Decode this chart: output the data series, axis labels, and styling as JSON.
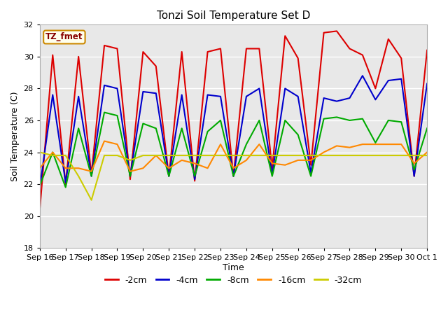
{
  "title": "Tonzi Soil Temperature Set D",
  "xlabel": "Time",
  "ylabel": "Soil Temperature (C)",
  "ylim": [
    18,
    32
  ],
  "yticks": [
    18,
    20,
    22,
    24,
    26,
    28,
    30,
    32
  ],
  "plot_bg_color": "#e8e8e8",
  "annotation_text": "TZ_fmet",
  "annotation_bg": "#ffffee",
  "annotation_border": "#cc8800",
  "annotation_text_color": "#880000",
  "series_order": [
    "-2cm",
    "-4cm",
    "-8cm",
    "-16cm",
    "-32cm"
  ],
  "series": {
    "-2cm": {
      "color": "#dd0000",
      "x": [
        0,
        0.5,
        1,
        1.5,
        2,
        2.5,
        3,
        3.5,
        4,
        4.5,
        5,
        5.5,
        6,
        6.5,
        7,
        7.5,
        8,
        8.5,
        9,
        9.5,
        10,
        10.5,
        11,
        11.5,
        12,
        12.5,
        13,
        13.5,
        14,
        14.5,
        15
      ],
      "y": [
        20.4,
        30.1,
        22.0,
        30.0,
        22.6,
        30.7,
        30.5,
        22.3,
        30.3,
        29.4,
        22.5,
        30.3,
        22.2,
        30.3,
        30.5,
        22.5,
        30.5,
        30.5,
        23.0,
        31.3,
        29.9,
        23.2,
        31.5,
        31.6,
        30.5,
        30.1,
        28.0,
        31.1,
        29.9,
        22.5,
        30.4
      ]
    },
    "-4cm": {
      "color": "#0000cc",
      "x": [
        0,
        0.5,
        1,
        1.5,
        2,
        2.5,
        3,
        3.5,
        4,
        4.5,
        5,
        5.5,
        6,
        6.5,
        7,
        7.5,
        8,
        8.5,
        9,
        9.5,
        10,
        10.5,
        11,
        11.5,
        12,
        12.5,
        13,
        13.5,
        14,
        14.5,
        15
      ],
      "y": [
        21.8,
        27.6,
        22.1,
        27.5,
        22.5,
        28.2,
        28.0,
        22.5,
        27.8,
        27.7,
        22.5,
        27.6,
        22.3,
        27.6,
        27.5,
        22.5,
        27.5,
        28.0,
        22.6,
        28.0,
        27.5,
        22.7,
        27.4,
        27.2,
        27.4,
        28.8,
        27.3,
        28.5,
        28.6,
        22.5,
        28.3
      ]
    },
    "-8cm": {
      "color": "#00aa00",
      "x": [
        0,
        0.5,
        1,
        1.5,
        2,
        2.5,
        3,
        3.5,
        4,
        4.5,
        5,
        5.5,
        6,
        6.5,
        7,
        7.5,
        8,
        8.5,
        9,
        9.5,
        10,
        10.5,
        11,
        11.5,
        12,
        12.5,
        13,
        13.5,
        14,
        14.5,
        15
      ],
      "y": [
        21.9,
        24.0,
        21.8,
        25.5,
        22.5,
        26.5,
        26.3,
        22.5,
        25.8,
        25.5,
        22.5,
        25.5,
        22.5,
        25.3,
        26.0,
        22.5,
        24.5,
        26.0,
        22.5,
        26.0,
        25.1,
        22.5,
        26.1,
        26.2,
        26.0,
        26.1,
        24.6,
        26.0,
        25.9,
        22.9,
        25.5
      ]
    },
    "-16cm": {
      "color": "#ff8800",
      "x": [
        0,
        0.5,
        1,
        1.5,
        2,
        2.5,
        3,
        3.5,
        4,
        4.5,
        5,
        5.5,
        6,
        6.5,
        7,
        7.5,
        8,
        8.5,
        9,
        9.5,
        10,
        10.5,
        11,
        11.5,
        12,
        12.5,
        13,
        13.5,
        14,
        14.5,
        15
      ],
      "y": [
        23.0,
        24.0,
        23.0,
        23.0,
        22.8,
        24.7,
        24.5,
        22.8,
        23.0,
        23.8,
        23.0,
        23.5,
        23.3,
        23.0,
        24.5,
        23.0,
        23.5,
        24.5,
        23.3,
        23.2,
        23.5,
        23.5,
        24.0,
        24.4,
        24.3,
        24.5,
        24.5,
        24.5,
        24.5,
        23.3,
        24.0
      ]
    },
    "-32cm": {
      "color": "#cccc00",
      "x": [
        0,
        0.5,
        1,
        1.5,
        2,
        2.5,
        3,
        3.5,
        4,
        4.5,
        5,
        5.5,
        6,
        6.5,
        7,
        7.5,
        8,
        8.5,
        9,
        9.5,
        10,
        10.5,
        11,
        11.5,
        12,
        12.5,
        13,
        13.5,
        14,
        14.5,
        15
      ],
      "y": [
        24.0,
        23.8,
        23.8,
        22.5,
        21.0,
        23.8,
        23.8,
        23.5,
        23.8,
        23.8,
        23.8,
        23.8,
        23.8,
        23.8,
        23.8,
        23.8,
        23.8,
        23.8,
        23.8,
        23.8,
        23.8,
        23.8,
        23.8,
        23.8,
        23.8,
        23.8,
        23.8,
        23.8,
        23.8,
        23.8,
        23.8
      ]
    }
  },
  "xtick_labels": [
    "Sep 16",
    "Sep 17",
    "Sep 18",
    "Sep 19",
    "Sep 20",
    "Sep 21",
    "Sep 22",
    "Sep 23",
    "Sep 24",
    "Sep 25",
    "Sep 26",
    "Sep 27",
    "Sep 28",
    "Sep 29",
    "Sep 30",
    "Oct 1"
  ],
  "xtick_positions": [
    0,
    1,
    2,
    3,
    4,
    5,
    6,
    7,
    8,
    9,
    10,
    11,
    12,
    13,
    14,
    15
  ]
}
